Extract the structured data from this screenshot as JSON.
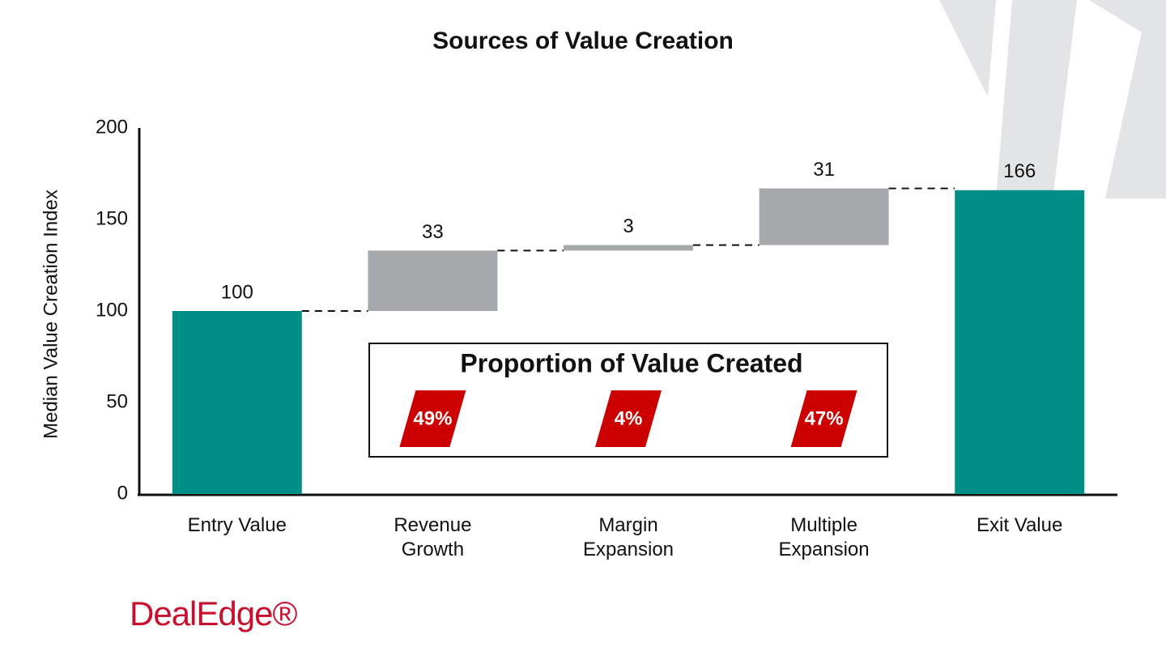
{
  "chart_data": {
    "type": "waterfall",
    "title": "Sources of Value Creation",
    "y_label": "Median Value Creation Index",
    "categories": [
      "Entry Value",
      "Revenue Growth",
      "Margin Expansion",
      "Multiple Expansion",
      "Exit Value"
    ],
    "values": [
      100,
      33,
      3,
      31,
      166
    ],
    "measures": [
      "absolute",
      "relative",
      "relative",
      "relative",
      "total"
    ],
    "total_color": "#008f87",
    "delta_color": "#a6a9ab",
    "ylim": [
      0,
      200
    ],
    "yticks": [
      0,
      50,
      100,
      150,
      200
    ],
    "inset": {
      "title": "Proportion of Value Created",
      "values": [
        49,
        4,
        47
      ],
      "value_labels": [
        "49%",
        "4%",
        "47%"
      ],
      "color": "#cc0000"
    }
  },
  "logo": "DealEdge®"
}
